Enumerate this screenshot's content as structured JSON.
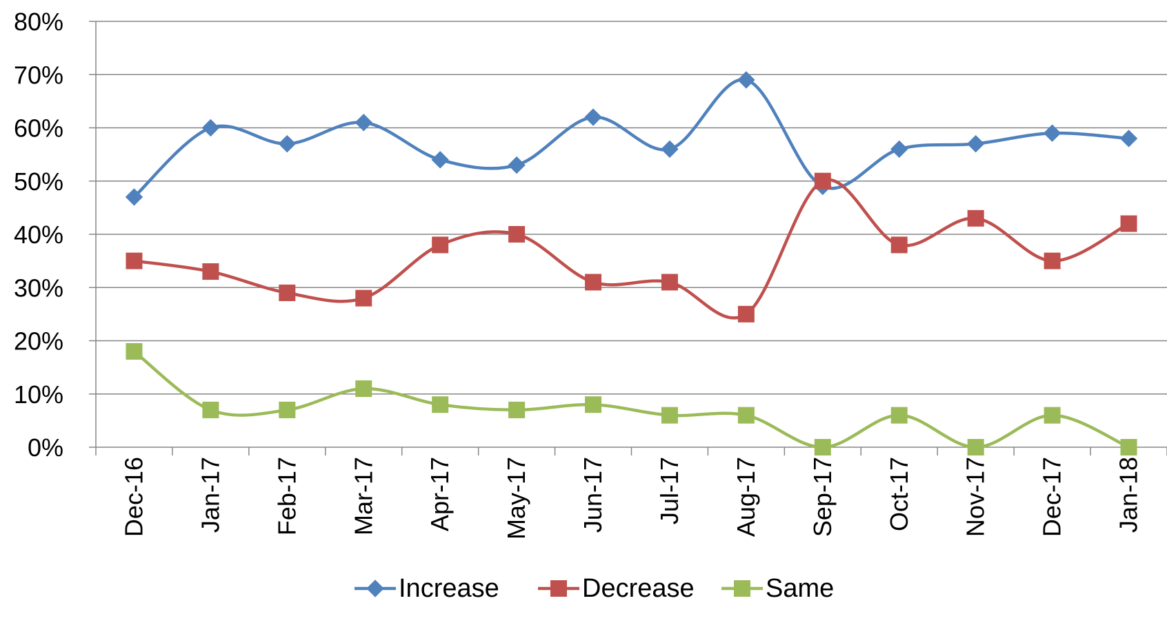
{
  "chart_data": {
    "type": "line",
    "smooth": true,
    "categories": [
      "Dec-16",
      "Jan-17",
      "Feb-17",
      "Mar-17",
      "Apr-17",
      "May-17",
      "Jun-17",
      "Jul-17",
      "Aug-17",
      "Sep-17",
      "Oct-17",
      "Nov-17",
      "Dec-17",
      "Jan-18"
    ],
    "series": [
      {
        "name": "Increase",
        "color": "#4F81BD",
        "marker": "diamond",
        "values": [
          47,
          60,
          57,
          61,
          54,
          53,
          62,
          56,
          69,
          49,
          56,
          57,
          59,
          58
        ]
      },
      {
        "name": "Decrease",
        "color": "#C0504D",
        "marker": "square",
        "values": [
          35,
          33,
          29,
          28,
          38,
          40,
          31,
          31,
          25,
          50,
          38,
          43,
          35,
          42
        ]
      },
      {
        "name": "Same",
        "color": "#9BBB59",
        "marker": "square",
        "values": [
          18,
          7,
          7,
          11,
          8,
          7,
          8,
          6,
          6,
          0,
          6,
          0,
          6,
          0
        ]
      }
    ],
    "ylim": [
      0,
      80
    ],
    "yticks": [
      "0%",
      "10%",
      "20%",
      "30%",
      "40%",
      "50%",
      "60%",
      "70%",
      "80%"
    ],
    "grid": true,
    "legend_position": "bottom",
    "xlabel": "",
    "ylabel": "",
    "title": ""
  }
}
